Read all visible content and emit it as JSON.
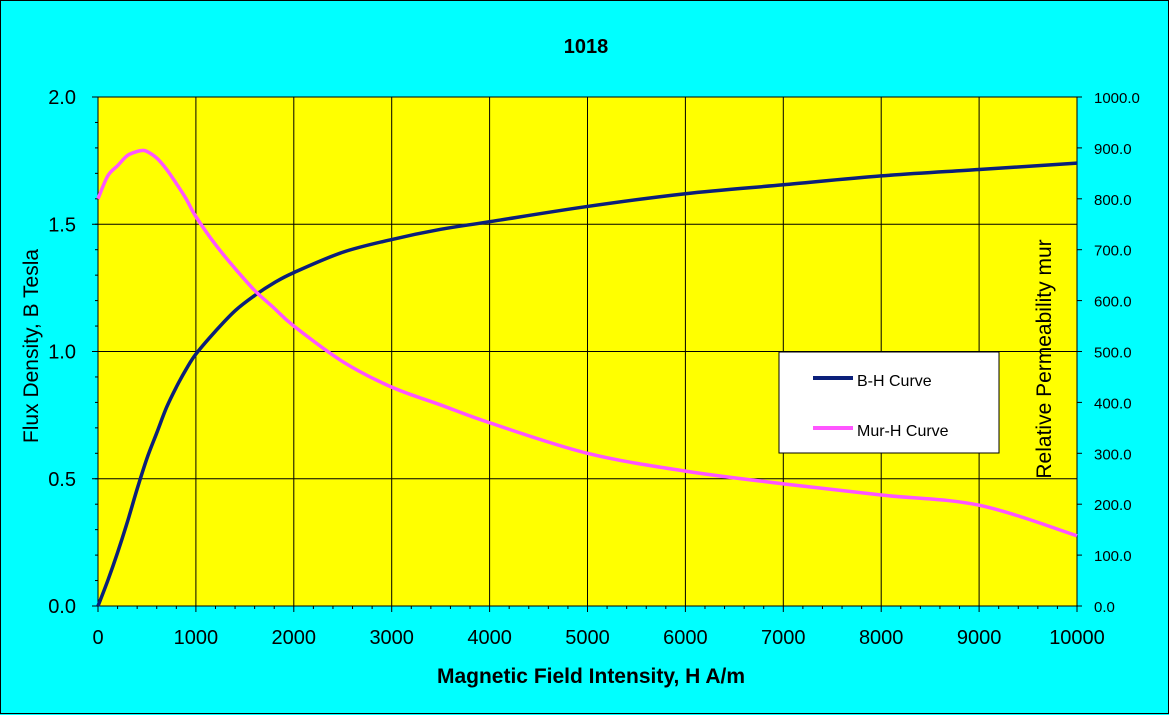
{
  "chart_data": {
    "type": "line",
    "title": "1018",
    "xlabel": "Magnetic Field Intensity, H A/m",
    "ylabel": "Flux Density, B Tesla",
    "y2label": "Relative Permeability mur",
    "xlim": [
      0,
      10000
    ],
    "ylim": [
      0,
      2
    ],
    "y2lim": [
      0,
      1000
    ],
    "x_ticks": [
      "0",
      "1000",
      "2000",
      "3000",
      "4000",
      "5000",
      "6000",
      "7000",
      "8000",
      "9000",
      "10000"
    ],
    "y_ticks": [
      "0.0",
      "0.5",
      "1.0",
      "1.5",
      "2.0"
    ],
    "y2_ticks": [
      "0.0",
      "100.0",
      "200.0",
      "300.0",
      "400.0",
      "500.0",
      "600.0",
      "700.0",
      "800.0",
      "900.0",
      "1000.0"
    ],
    "grid": true,
    "legend_position": "right",
    "background_color": "#00FFFF",
    "plot_area_color": "#FFFF00",
    "series": [
      {
        "name": "B-H Curve",
        "axis": "left",
        "color": "#0B1F7A",
        "x": [
          0,
          100,
          200,
          300,
          400,
          500,
          600,
          700,
          800,
          900,
          1000,
          1200,
          1400,
          1600,
          1800,
          2000,
          2500,
          3000,
          3500,
          4000,
          5000,
          6000,
          7000,
          8000,
          9000,
          10000
        ],
        "y": [
          0,
          0.1,
          0.21,
          0.33,
          0.46,
          0.58,
          0.68,
          0.78,
          0.86,
          0.93,
          0.99,
          1.08,
          1.16,
          1.22,
          1.27,
          1.31,
          1.39,
          1.44,
          1.48,
          1.51,
          1.57,
          1.62,
          1.655,
          1.69,
          1.715,
          1.74
        ]
      },
      {
        "name": "Mur-H Curve",
        "axis": "right",
        "color": "#FF55FF",
        "x": [
          0,
          100,
          200,
          300,
          400,
          450,
          500,
          600,
          700,
          800,
          900,
          1000,
          1200,
          1400,
          1600,
          1800,
          2000,
          2500,
          3000,
          3500,
          4000,
          5000,
          6000,
          7000,
          8000,
          9000,
          10000
        ],
        "y": [
          800,
          845,
          865,
          885,
          893,
          895,
          893,
          880,
          858,
          830,
          800,
          765,
          710,
          663,
          620,
          585,
          550,
          480,
          430,
          395,
          360,
          300,
          265,
          240,
          218,
          198,
          138
        ]
      }
    ]
  }
}
